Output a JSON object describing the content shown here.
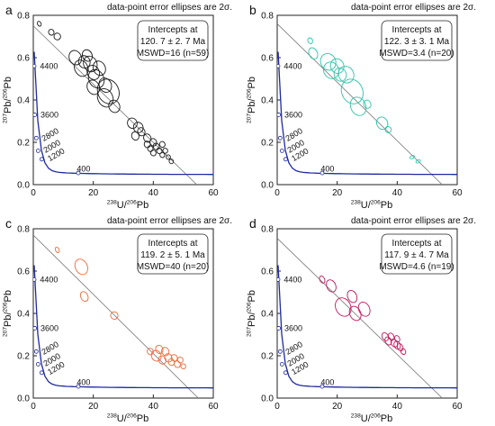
{
  "chart_data": [
    {
      "type": "scatter",
      "panel_label": "a",
      "title": "data-point error ellipses are 2σ.",
      "xlabel": "238U/206Pb",
      "ylabel": "207Pb/206Pb",
      "xlim": [
        0,
        60
      ],
      "ylim": [
        0,
        0.8
      ],
      "xticks": [
        0,
        20,
        40,
        60
      ],
      "yticks": [
        0.0,
        0.2,
        0.4,
        0.6,
        0.8
      ],
      "ellipse_color": "#1a1a1a",
      "intercepts": {
        "line1": "Intercepts at",
        "line2": "120. 7 ± 2. 7 Ma",
        "line3": "MSWD=16 (n=59)"
      },
      "discordia": {
        "y_intercept": 0.75,
        "x_intercept": 54.5
      },
      "concordia_labels": [
        "4400",
        "3600",
        "2800",
        "2000",
        "1200",
        "400"
      ],
      "ellipses": [
        {
          "x": 2,
          "y": 0.76,
          "rx": 0.6,
          "ry": 0.012
        },
        {
          "x": 6,
          "y": 0.72,
          "rx": 0.9,
          "ry": 0.014
        },
        {
          "x": 8,
          "y": 0.7,
          "rx": 1.1,
          "ry": 0.016
        },
        {
          "x": 14,
          "y": 0.6,
          "rx": 2.0,
          "ry": 0.035
        },
        {
          "x": 16,
          "y": 0.55,
          "rx": 2.2,
          "ry": 0.04
        },
        {
          "x": 17,
          "y": 0.58,
          "rx": 1.9,
          "ry": 0.03
        },
        {
          "x": 18,
          "y": 0.61,
          "rx": 1.6,
          "ry": 0.028
        },
        {
          "x": 19,
          "y": 0.57,
          "rx": 2.2,
          "ry": 0.038
        },
        {
          "x": 20,
          "y": 0.53,
          "rx": 2.0,
          "ry": 0.035
        },
        {
          "x": 20,
          "y": 0.46,
          "rx": 2.0,
          "ry": 0.035
        },
        {
          "x": 21,
          "y": 0.5,
          "rx": 2.5,
          "ry": 0.045
        },
        {
          "x": 22,
          "y": 0.55,
          "rx": 2.0,
          "ry": 0.035
        },
        {
          "x": 24,
          "y": 0.47,
          "rx": 2.0,
          "ry": 0.035
        },
        {
          "x": 24,
          "y": 0.41,
          "rx": 2.5,
          "ry": 0.045
        },
        {
          "x": 25,
          "y": 0.44,
          "rx": 3.5,
          "ry": 0.06
        },
        {
          "x": 27,
          "y": 0.37,
          "rx": 1.8,
          "ry": 0.03
        },
        {
          "x": 33,
          "y": 0.29,
          "rx": 1.6,
          "ry": 0.025
        },
        {
          "x": 35,
          "y": 0.27,
          "rx": 1.6,
          "ry": 0.025
        },
        {
          "x": 34,
          "y": 0.23,
          "rx": 1.2,
          "ry": 0.02
        },
        {
          "x": 36,
          "y": 0.25,
          "rx": 1.2,
          "ry": 0.02
        },
        {
          "x": 38,
          "y": 0.22,
          "rx": 1.2,
          "ry": 0.02
        },
        {
          "x": 38,
          "y": 0.19,
          "rx": 1.0,
          "ry": 0.016
        },
        {
          "x": 39,
          "y": 0.17,
          "rx": 0.9,
          "ry": 0.014
        },
        {
          "x": 40,
          "y": 0.2,
          "rx": 1.1,
          "ry": 0.018
        },
        {
          "x": 40,
          "y": 0.15,
          "rx": 0.9,
          "ry": 0.014
        },
        {
          "x": 41,
          "y": 0.18,
          "rx": 1.0,
          "ry": 0.016
        },
        {
          "x": 42,
          "y": 0.16,
          "rx": 0.9,
          "ry": 0.014
        },
        {
          "x": 43,
          "y": 0.19,
          "rx": 0.9,
          "ry": 0.014
        },
        {
          "x": 43,
          "y": 0.14,
          "rx": 0.8,
          "ry": 0.012
        },
        {
          "x": 44,
          "y": 0.16,
          "rx": 0.8,
          "ry": 0.012
        },
        {
          "x": 45,
          "y": 0.13,
          "rx": 0.7,
          "ry": 0.011
        },
        {
          "x": 46,
          "y": 0.11,
          "rx": 0.7,
          "ry": 0.011
        }
      ]
    },
    {
      "type": "scatter",
      "panel_label": "b",
      "title": "data-point error ellipses are 2σ.",
      "xlabel": "238U/206Pb",
      "ylabel": "207Pb/206Pb",
      "xlim": [
        0,
        60
      ],
      "ylim": [
        0,
        0.8
      ],
      "xticks": [
        0,
        20,
        40,
        60
      ],
      "yticks": [
        0.0,
        0.2,
        0.4,
        0.6,
        0.8
      ],
      "ellipse_color": "#2ec4a8",
      "intercepts": {
        "line1": "Intercepts at",
        "line2": "122. 3 ± 3. 1 Ma",
        "line3": "MSWD=3.4 (n=20)"
      },
      "discordia": {
        "y_intercept": 0.76,
        "x_intercept": 55
      },
      "concordia_labels": [
        "4400",
        "3600",
        "2800",
        "2000",
        "1200",
        "400"
      ],
      "ellipses": [
        {
          "x": 11,
          "y": 0.68,
          "rx": 0.8,
          "ry": 0.014
        },
        {
          "x": 12,
          "y": 0.62,
          "rx": 1.4,
          "ry": 0.028
        },
        {
          "x": 17,
          "y": 0.58,
          "rx": 2.5,
          "ry": 0.04
        },
        {
          "x": 18,
          "y": 0.54,
          "rx": 2.5,
          "ry": 0.04
        },
        {
          "x": 20,
          "y": 0.56,
          "rx": 2.2,
          "ry": 0.035
        },
        {
          "x": 21,
          "y": 0.52,
          "rx": 2.0,
          "ry": 0.032
        },
        {
          "x": 23,
          "y": 0.52,
          "rx": 2.5,
          "ry": 0.04
        },
        {
          "x": 25,
          "y": 0.44,
          "rx": 3.5,
          "ry": 0.06
        },
        {
          "x": 27,
          "y": 0.37,
          "rx": 2.5,
          "ry": 0.045
        },
        {
          "x": 30,
          "y": 0.38,
          "rx": 1.2,
          "ry": 0.02
        },
        {
          "x": 35,
          "y": 0.29,
          "rx": 1.8,
          "ry": 0.03
        },
        {
          "x": 37,
          "y": 0.26,
          "rx": 1.0,
          "ry": 0.015
        },
        {
          "x": 45,
          "y": 0.13,
          "rx": 0.8,
          "ry": 0.007
        },
        {
          "x": 47,
          "y": 0.11,
          "rx": 0.8,
          "ry": 0.007
        }
      ]
    },
    {
      "type": "scatter",
      "panel_label": "c",
      "title": "data-point error ellipses are 2σ.",
      "xlabel": "238U/206Pb",
      "ylabel": "207Pb/206Pb",
      "xlim": [
        0,
        60
      ],
      "ylim": [
        0,
        0.8
      ],
      "xticks": [
        0,
        20,
        40,
        60
      ],
      "yticks": [
        0.0,
        0.2,
        0.4,
        0.6,
        0.8
      ],
      "ellipse_color": "#f06a3a",
      "intercepts": {
        "line1": "Intercepts at",
        "line2": "119. 2 ± 5. 1 Ma",
        "line3": "MSWD=40 (n=20)"
      },
      "discordia": {
        "y_intercept": 0.77,
        "x_intercept": 55
      },
      "concordia_labels": [
        "4400",
        "3600",
        "2800",
        "2000",
        "1200",
        "400"
      ],
      "ellipses": [
        {
          "x": 8,
          "y": 0.7,
          "rx": 0.6,
          "ry": 0.014
        },
        {
          "x": 16,
          "y": 0.62,
          "rx": 2.0,
          "ry": 0.038
        },
        {
          "x": 17,
          "y": 0.48,
          "rx": 1.2,
          "ry": 0.024
        },
        {
          "x": 27,
          "y": 0.39,
          "rx": 1.2,
          "ry": 0.018
        },
        {
          "x": 39,
          "y": 0.22,
          "rx": 1.0,
          "ry": 0.016
        },
        {
          "x": 41,
          "y": 0.2,
          "rx": 1.6,
          "ry": 0.026
        },
        {
          "x": 42,
          "y": 0.23,
          "rx": 1.2,
          "ry": 0.02
        },
        {
          "x": 43,
          "y": 0.18,
          "rx": 1.2,
          "ry": 0.02
        },
        {
          "x": 44,
          "y": 0.22,
          "rx": 1.2,
          "ry": 0.02
        },
        {
          "x": 45,
          "y": 0.19,
          "rx": 1.2,
          "ry": 0.02
        },
        {
          "x": 46,
          "y": 0.17,
          "rx": 1.0,
          "ry": 0.016
        },
        {
          "x": 47,
          "y": 0.19,
          "rx": 1.0,
          "ry": 0.016
        },
        {
          "x": 48,
          "y": 0.16,
          "rx": 1.0,
          "ry": 0.016
        },
        {
          "x": 49,
          "y": 0.18,
          "rx": 0.9,
          "ry": 0.014
        },
        {
          "x": 50,
          "y": 0.15,
          "rx": 0.8,
          "ry": 0.012
        }
      ]
    },
    {
      "type": "scatter",
      "panel_label": "d",
      "title": "data-point error ellipses are 2σ.",
      "xlabel": "238U/206Pb",
      "ylabel": "207Pb/206Pb",
      "xlim": [
        0,
        60
      ],
      "ylim": [
        0,
        0.8
      ],
      "xticks": [
        0,
        20,
        40,
        60
      ],
      "yticks": [
        0.0,
        0.2,
        0.4,
        0.6,
        0.8
      ],
      "ellipse_color": "#c2185b",
      "intercepts": {
        "line1": "Intercepts at",
        "line2": "117. 9 ± 4. 7 Ma",
        "line3": "MSWD=4.6 (n=19)"
      },
      "discordia": {
        "y_intercept": 0.755,
        "x_intercept": 55
      },
      "concordia_labels": [
        "4400",
        "3600",
        "2800",
        "2000",
        "1200",
        "400"
      ],
      "ellipses": [
        {
          "x": 15,
          "y": 0.56,
          "rx": 0.8,
          "ry": 0.018
        },
        {
          "x": 18,
          "y": 0.53,
          "rx": 1.5,
          "ry": 0.03
        },
        {
          "x": 22,
          "y": 0.43,
          "rx": 2.5,
          "ry": 0.045
        },
        {
          "x": 25,
          "y": 0.48,
          "rx": 1.5,
          "ry": 0.03
        },
        {
          "x": 26,
          "y": 0.4,
          "rx": 1.8,
          "ry": 0.035
        },
        {
          "x": 29,
          "y": 0.42,
          "rx": 1.8,
          "ry": 0.035
        },
        {
          "x": 36,
          "y": 0.29,
          "rx": 1.0,
          "ry": 0.02
        },
        {
          "x": 37,
          "y": 0.27,
          "rx": 1.0,
          "ry": 0.02
        },
        {
          "x": 38,
          "y": 0.29,
          "rx": 0.9,
          "ry": 0.018
        },
        {
          "x": 39,
          "y": 0.26,
          "rx": 1.0,
          "ry": 0.02
        },
        {
          "x": 40,
          "y": 0.25,
          "rx": 1.0,
          "ry": 0.02
        },
        {
          "x": 40,
          "y": 0.28,
          "rx": 0.8,
          "ry": 0.016
        },
        {
          "x": 41,
          "y": 0.24,
          "rx": 0.9,
          "ry": 0.018
        },
        {
          "x": 42,
          "y": 0.22,
          "rx": 0.8,
          "ry": 0.014
        }
      ]
    }
  ]
}
